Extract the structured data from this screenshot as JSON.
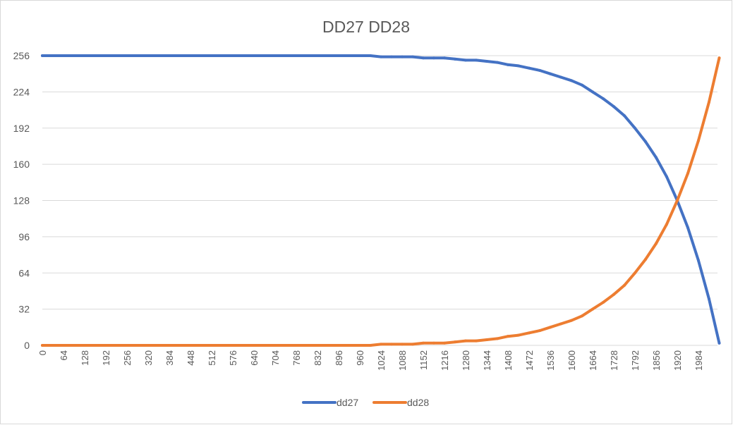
{
  "chart_data": {
    "type": "line",
    "title": "DD27 DD28",
    "xlabel": "",
    "ylabel": "",
    "xlim": [
      0,
      2047
    ],
    "ylim": [
      0,
      256
    ],
    "yticks": [
      0,
      32,
      64,
      96,
      128,
      160,
      192,
      224,
      256
    ],
    "xticks": [
      0,
      64,
      128,
      192,
      256,
      320,
      384,
      448,
      512,
      576,
      640,
      704,
      768,
      832,
      896,
      960,
      1024,
      1088,
      1152,
      1216,
      1280,
      1344,
      1408,
      1472,
      1536,
      1600,
      1664,
      1728,
      1792,
      1856,
      1920,
      1984
    ],
    "grid": true,
    "legend_position": "bottom",
    "x": [
      0,
      992,
      1024,
      1056,
      1088,
      1120,
      1152,
      1184,
      1216,
      1248,
      1280,
      1312,
      1344,
      1376,
      1408,
      1440,
      1472,
      1504,
      1536,
      1568,
      1600,
      1632,
      1664,
      1696,
      1728,
      1760,
      1792,
      1824,
      1856,
      1888,
      1920,
      1952,
      1984,
      2016,
      2047
    ],
    "series": [
      {
        "name": "dd27",
        "color": "#4472C4",
        "values": [
          256,
          256,
          255,
          255,
          255,
          255,
          254,
          254,
          254,
          253,
          252,
          252,
          251,
          250,
          248,
          247,
          245,
          243,
          240,
          237,
          234,
          230,
          224,
          218,
          211,
          203,
          192,
          180,
          166,
          149,
          128,
          104,
          75,
          41,
          2
        ]
      },
      {
        "name": "dd28",
        "color": "#ED7D31",
        "values": [
          0,
          0,
          1,
          1,
          1,
          1,
          2,
          2,
          2,
          3,
          4,
          4,
          5,
          6,
          8,
          9,
          11,
          13,
          16,
          19,
          22,
          26,
          32,
          38,
          45,
          53,
          64,
          76,
          90,
          107,
          128,
          152,
          181,
          215,
          254
        ]
      }
    ]
  }
}
